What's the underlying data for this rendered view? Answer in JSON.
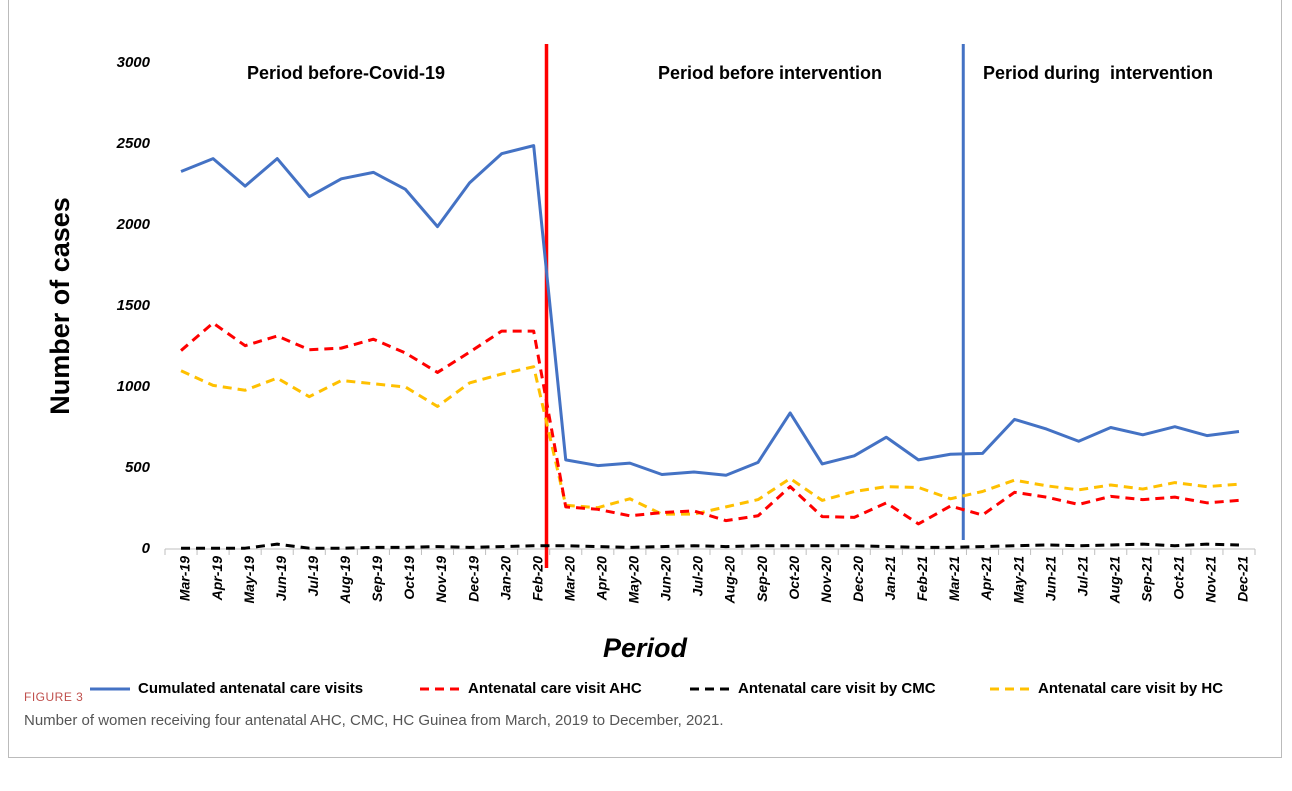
{
  "chart_data": {
    "type": "line",
    "ylabel": "Number of cases",
    "xlabel": "Period",
    "categories": [
      "Mar-19",
      "Apr-19",
      "May-19",
      "Jun-19",
      "Jul-19",
      "Aug-19",
      "Sep-19",
      "Oct-19",
      "Nov-19",
      "Dec-19",
      "Jan-20",
      "Feb-20",
      "Mar-20",
      "Apr-20",
      "May-20",
      "Jun-20",
      "Jul-20",
      "Aug-20",
      "Sep-20",
      "Oct-20",
      "Nov-20",
      "Dec-20",
      "Jan-21",
      "Feb-21",
      "Mar-21",
      "Apr-21",
      "May-21",
      "Jun-21",
      "Jul-21",
      "Aug-21",
      "Sep-21",
      "Oct-21",
      "Nov-21",
      "Dec-21"
    ],
    "series": [
      {
        "name": "Cumulated antenatal care visits",
        "color": "#4472c4",
        "dashed": false,
        "values": [
          2330,
          2410,
          2240,
          2410,
          2175,
          2285,
          2325,
          2220,
          1990,
          2260,
          2440,
          2490,
          550,
          515,
          530,
          460,
          475,
          455,
          535,
          840,
          525,
          575,
          690,
          550,
          585,
          590,
          800,
          740,
          665,
          750,
          705,
          755,
          700,
          725
        ]
      },
      {
        "name": "Antenatal care visit AHC",
        "color": "#ff0000",
        "dashed": true,
        "values": [
          1225,
          1395,
          1255,
          1315,
          1230,
          1240,
          1295,
          1210,
          1090,
          1215,
          1345,
          1345,
          260,
          245,
          205,
          225,
          235,
          175,
          205,
          385,
          200,
          195,
          285,
          155,
          265,
          210,
          350,
          320,
          275,
          325,
          305,
          320,
          285,
          300
        ]
      },
      {
        "name": "Antenatal care visit by CMC",
        "color": "#000000",
        "dashed": true,
        "values": [
          5,
          5,
          5,
          30,
          5,
          5,
          10,
          10,
          15,
          10,
          15,
          20,
          20,
          15,
          10,
          15,
          20,
          15,
          20,
          20,
          20,
          20,
          15,
          10,
          10,
          15,
          20,
          25,
          20,
          25,
          30,
          20,
          30,
          25
        ]
      },
      {
        "name": "Antenatal care visit by HC",
        "color": "#ffc000",
        "dashed": true,
        "values": [
          1100,
          1010,
          980,
          1055,
          940,
          1040,
          1020,
          1000,
          880,
          1025,
          1080,
          1125,
          270,
          255,
          310,
          215,
          215,
          260,
          305,
          435,
          300,
          355,
          385,
          380,
          310,
          355,
          425,
          390,
          365,
          395,
          370,
          410,
          385,
          400
        ]
      }
    ],
    "ylim": [
      0,
      3000
    ],
    "yticks": [
      0,
      500,
      1000,
      1500,
      2000,
      2500,
      3000
    ],
    "legend": "bottom",
    "annotations": [
      {
        "text": "Period before-Covid-19",
        "color": "#000000"
      },
      {
        "text": "Period before intervention",
        "color": "#ff0000"
      },
      {
        "text": "Period during  intervention",
        "color": "#4472c4"
      }
    ]
  },
  "figure_label": "FIGURE 3",
  "caption": "Number of women receiving four antenatal AHC, CMC, HC Guinea from March, 2019 to December, 2021."
}
